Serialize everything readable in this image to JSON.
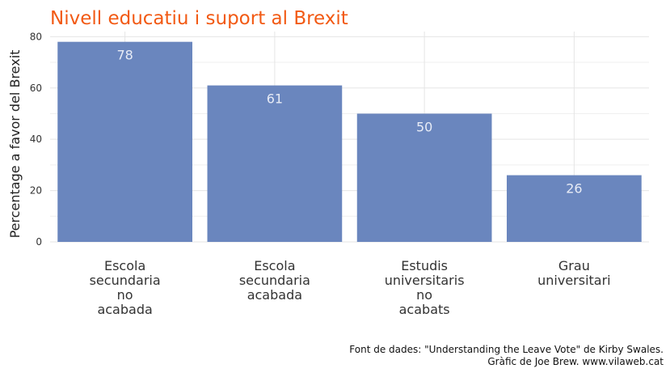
{
  "chart_data": {
    "type": "bar",
    "title": "Nivell educatiu i suport al Brexit",
    "xlabel": "",
    "ylabel": "Percentage a favor del Brexit",
    "categories": [
      "Escola secundaria no acabada",
      "Escola secundaria acabada",
      "Estudis universitaris no acabats",
      "Grau universitari"
    ],
    "category_lines": [
      [
        "Escola",
        "secundaria",
        "no",
        "acabada"
      ],
      [
        "Escola",
        "secundaria",
        "acabada"
      ],
      [
        "Estudis",
        "universitaris",
        "no",
        "acabats"
      ],
      [
        "Grau",
        "universitari"
      ]
    ],
    "values": [
      78,
      61,
      50,
      26
    ],
    "ylim": [
      0,
      82
    ],
    "yticks": [
      0,
      20,
      40,
      60,
      80
    ],
    "grid": true,
    "legend": "none",
    "colors": {
      "bar": "#6a86be",
      "title": "#f25a14",
      "label": "#e8ecf6"
    }
  },
  "caption": {
    "line1": "Font de dades: \"Understanding the Leave Vote\" de Kirby Swales.",
    "line2": "Gràfic de Joe Brew. www.vilaweb.cat"
  }
}
